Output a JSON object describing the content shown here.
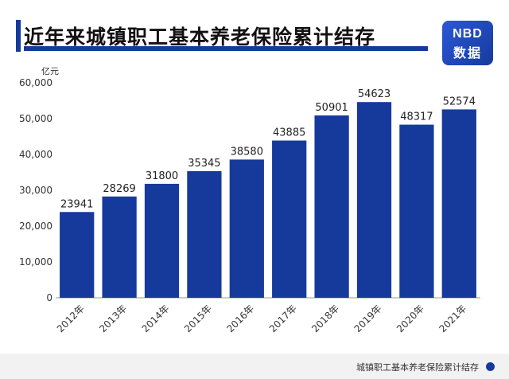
{
  "chart_data": {
    "type": "bar",
    "title": "近年来城镇职工基本养老保险累计结存",
    "ylabel": "亿元",
    "xlabel": "",
    "categories": [
      "2012年",
      "2013年",
      "2014年",
      "2015年",
      "2016年",
      "2017年",
      "2018年",
      "2019年",
      "2020年",
      "2021年"
    ],
    "values": [
      23941,
      28269,
      31800,
      35345,
      38580,
      43885,
      50901,
      54623,
      48317,
      52574
    ],
    "ylim": [
      0,
      60000
    ],
    "yticks": [
      "0",
      "10,000",
      "20,000",
      "30,000",
      "40,000",
      "50,000",
      "60,000"
    ],
    "bar_color": "#163a9c",
    "grid": false
  },
  "logo": {
    "line1": "NBD",
    "line2": "数据"
  },
  "footer": {
    "caption": "城镇职工基本养老保险累计结存"
  },
  "colors": {
    "accent": "#163a9c"
  }
}
